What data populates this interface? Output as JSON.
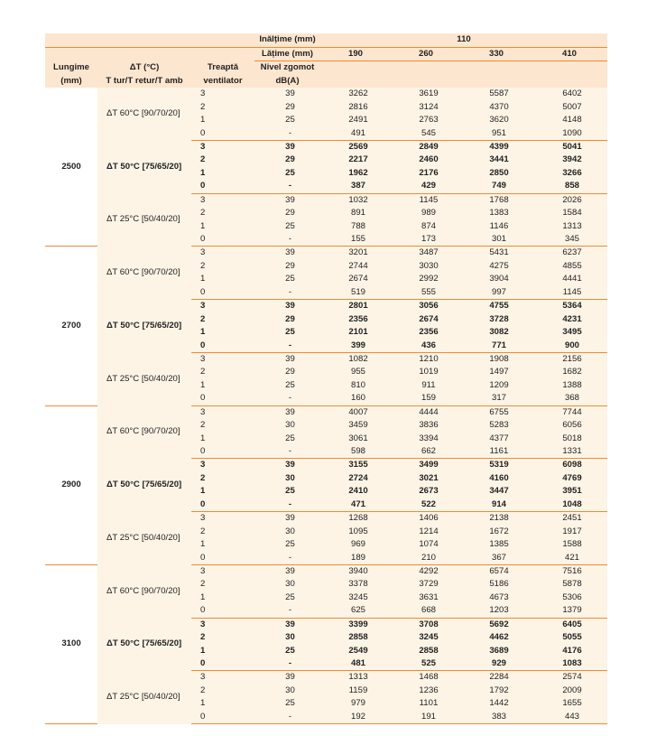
{
  "header": {
    "lungime": [
      "Lungime",
      "(mm)"
    ],
    "delta_t": [
      "ΔT (°C)",
      "T tur/T retur/T amb"
    ],
    "treapta": [
      "Treaptă",
      "ventilator"
    ],
    "inaltime_label": "Inălțime (mm)",
    "inaltime_value": "110",
    "latime_label": "Lățime (mm)",
    "latime_values": [
      "190",
      "260",
      "330",
      "410"
    ],
    "nivel": [
      "Nivel zgomot",
      "dB(A)"
    ]
  },
  "colors": {
    "header_bg": "#fde6cf",
    "body_bg": "#fdf4e6",
    "rule": "#ee8a32"
  },
  "groups": [
    {
      "length": "2500",
      "subgroups": [
        {
          "label": "ΔT 60°C [90/70/20]",
          "bold": false,
          "rows": [
            [
              "3",
              "39",
              "3262",
              "3619",
              "5587",
              "6402"
            ],
            [
              "2",
              "29",
              "2816",
              "3124",
              "4370",
              "5007"
            ],
            [
              "1",
              "25",
              "2491",
              "2763",
              "3620",
              "4148"
            ],
            [
              "0",
              "-",
              "491",
              "545",
              "951",
              "1090"
            ]
          ]
        },
        {
          "label": "ΔT 50°C [75/65/20]",
          "bold": true,
          "rows": [
            [
              "3",
              "39",
              "2569",
              "2849",
              "4399",
              "5041"
            ],
            [
              "2",
              "29",
              "2217",
              "2460",
              "3441",
              "3942"
            ],
            [
              "1",
              "25",
              "1962",
              "2176",
              "2850",
              "3266"
            ],
            [
              "0",
              "-",
              "387",
              "429",
              "749",
              "858"
            ]
          ]
        },
        {
          "label": "ΔT 25°C [50/40/20]",
          "bold": false,
          "rows": [
            [
              "3",
              "39",
              "1032",
              "1145",
              "1768",
              "2026"
            ],
            [
              "2",
              "29",
              "891",
              "989",
              "1383",
              "1584"
            ],
            [
              "1",
              "25",
              "788",
              "874",
              "1146",
              "1313"
            ],
            [
              "0",
              "-",
              "155",
              "173",
              "301",
              "345"
            ]
          ]
        }
      ]
    },
    {
      "length": "2700",
      "subgroups": [
        {
          "label": "ΔT 60°C [90/70/20]",
          "bold": false,
          "rows": [
            [
              "3",
              "39",
              "3201",
              "3487",
              "5431",
              "6237"
            ],
            [
              "2",
              "29",
              "2744",
              "3030",
              "4275",
              "4855"
            ],
            [
              "1",
              "25",
              "2674",
              "2992",
              "3904",
              "4441"
            ],
            [
              "0",
              "-",
              "519",
              "555",
              "997",
              "1145"
            ]
          ]
        },
        {
          "label": "ΔT 50°C [75/65/20]",
          "bold": true,
          "rows": [
            [
              "3",
              "39",
              "2801",
              "3056",
              "4755",
              "5364"
            ],
            [
              "2",
              "29",
              "2356",
              "2674",
              "3728",
              "4231"
            ],
            [
              "1",
              "25",
              "2101",
              "2356",
              "3082",
              "3495"
            ],
            [
              "0",
              "-",
              "399",
              "436",
              "771",
              "900"
            ]
          ]
        },
        {
          "label": "ΔT 25°C [50/40/20]",
          "bold": false,
          "rows": [
            [
              "3",
              "39",
              "1082",
              "1210",
              "1908",
              "2156"
            ],
            [
              "2",
              "29",
              "955",
              "1019",
              "1497",
              "1682"
            ],
            [
              "1",
              "25",
              "810",
              "911",
              "1209",
              "1388"
            ],
            [
              "0",
              "-",
              "160",
              "159",
              "317",
              "368"
            ]
          ]
        }
      ]
    },
    {
      "length": "2900",
      "subgroups": [
        {
          "label": "ΔT 60°C [90/70/20]",
          "bold": false,
          "rows": [
            [
              "3",
              "39",
              "4007",
              "4444",
              "6755",
              "7744"
            ],
            [
              "2",
              "30",
              "3459",
              "3836",
              "5283",
              "6056"
            ],
            [
              "1",
              "25",
              "3061",
              "3394",
              "4377",
              "5018"
            ],
            [
              "0",
              "-",
              "598",
              "662",
              "1161",
              "1331"
            ]
          ]
        },
        {
          "label": "ΔT 50°C [75/65/20]",
          "bold": true,
          "rows": [
            [
              "3",
              "39",
              "3155",
              "3499",
              "5319",
              "6098"
            ],
            [
              "2",
              "30",
              "2724",
              "3021",
              "4160",
              "4769"
            ],
            [
              "1",
              "25",
              "2410",
              "2673",
              "3447",
              "3951"
            ],
            [
              "0",
              "-",
              "471",
              "522",
              "914",
              "1048"
            ]
          ]
        },
        {
          "label": "ΔT 25°C [50/40/20]",
          "bold": false,
          "rows": [
            [
              "3",
              "39",
              "1268",
              "1406",
              "2138",
              "2451"
            ],
            [
              "2",
              "30",
              "1095",
              "1214",
              "1672",
              "1917"
            ],
            [
              "1",
              "25",
              "969",
              "1074",
              "1385",
              "1588"
            ],
            [
              "0",
              "-",
              "189",
              "210",
              "367",
              "421"
            ]
          ]
        }
      ]
    },
    {
      "length": "3100",
      "subgroups": [
        {
          "label": "ΔT 60°C [90/70/20]",
          "bold": false,
          "rows": [
            [
              "3",
              "39",
              "3940",
              "4292",
              "6574",
              "7516"
            ],
            [
              "2",
              "30",
              "3378",
              "3729",
              "5186",
              "5878"
            ],
            [
              "1",
              "25",
              "3245",
              "3631",
              "4673",
              "5306"
            ],
            [
              "0",
              "-",
              "625",
              "668",
              "1203",
              "1379"
            ]
          ]
        },
        {
          "label": "ΔT 50°C [75/65/20]",
          "bold": true,
          "rows": [
            [
              "3",
              "39",
              "3399",
              "3708",
              "5692",
              "6405"
            ],
            [
              "2",
              "30",
              "2858",
              "3245",
              "4462",
              "5055"
            ],
            [
              "1",
              "25",
              "2549",
              "2858",
              "3689",
              "4176"
            ],
            [
              "0",
              "-",
              "481",
              "525",
              "929",
              "1083"
            ]
          ]
        },
        {
          "label": "ΔT 25°C [50/40/20]",
          "bold": false,
          "rows": [
            [
              "3",
              "39",
              "1313",
              "1468",
              "2284",
              "2574"
            ],
            [
              "2",
              "30",
              "1159",
              "1236",
              "1792",
              "2009"
            ],
            [
              "1",
              "25",
              "979",
              "1101",
              "1442",
              "1655"
            ],
            [
              "0",
              "-",
              "192",
              "191",
              "383",
              "443"
            ]
          ]
        }
      ]
    }
  ]
}
